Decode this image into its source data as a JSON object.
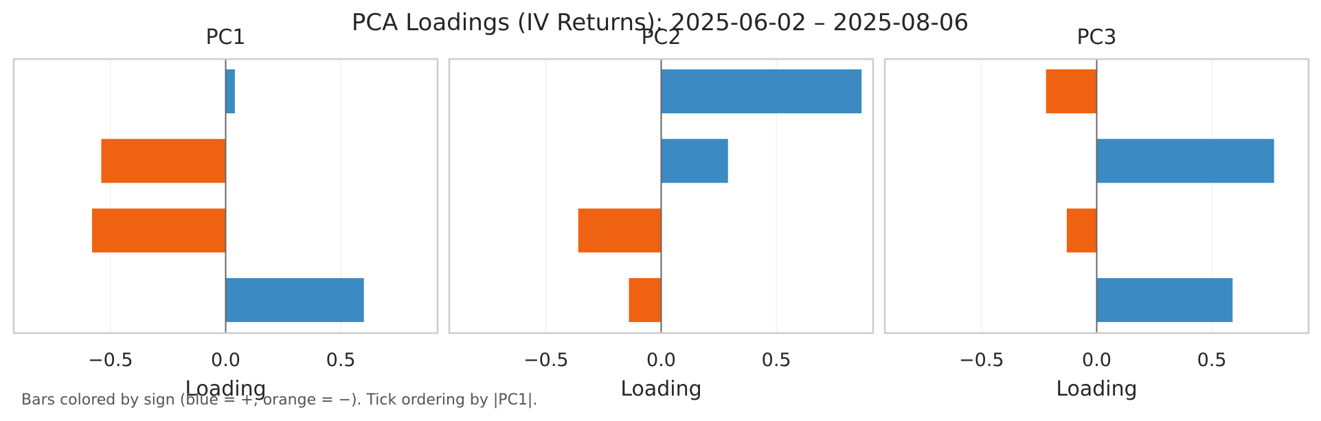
{
  "figure": {
    "title": "PCA Loadings (IV Returns): 2025-06-02 – 2025-08-06",
    "footnote": "Bars colored by sign (blue = +, orange = −). Tick ordering by |PC1|."
  },
  "colors": {
    "positive": "#3b8bc2",
    "negative": "#ee6211",
    "zero_line": "#666666",
    "frame": "#cccccc",
    "grid": "#eeeeee"
  },
  "chart_data": [
    {
      "type": "bar",
      "orientation": "horizontal",
      "title": "PC1",
      "xlabel": "Loading",
      "ylabel": "",
      "xlim": [
        -0.92,
        0.92
      ],
      "xticks": [
        -0.5,
        0.0,
        0.5
      ],
      "xtick_labels": [
        "−0.5",
        "0.0",
        "0.5"
      ],
      "grid": true,
      "values": [
        0.04,
        -0.54,
        -0.58,
        0.6
      ]
    },
    {
      "type": "bar",
      "orientation": "horizontal",
      "title": "PC2",
      "xlabel": "Loading",
      "ylabel": "",
      "xlim": [
        -0.92,
        0.92
      ],
      "xticks": [
        -0.5,
        0.0,
        0.5
      ],
      "xtick_labels": [
        "−0.5",
        "0.0",
        "0.5"
      ],
      "grid": true,
      "values": [
        0.87,
        0.29,
        -0.36,
        -0.14
      ]
    },
    {
      "type": "bar",
      "orientation": "horizontal",
      "title": "PC3",
      "xlabel": "Loading",
      "ylabel": "",
      "xlim": [
        -0.92,
        0.92
      ],
      "xticks": [
        -0.5,
        0.0,
        0.5
      ],
      "xtick_labels": [
        "−0.5",
        "0.0",
        "0.5"
      ],
      "grid": true,
      "values": [
        -0.22,
        0.77,
        -0.13,
        0.59
      ]
    }
  ]
}
